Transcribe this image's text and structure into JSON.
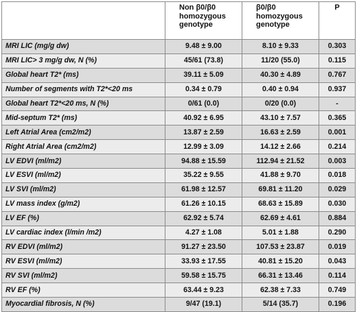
{
  "header": {
    "label_col": "",
    "group1": [
      "Non β0/β0",
      "homozygous",
      "genotype"
    ],
    "group2": [
      "β0/β0",
      "homozygous",
      "genotype"
    ],
    "p_col": "P"
  },
  "rows": [
    {
      "label": "MRI LIC (mg/g dw)",
      "g1": "9.48 ± 9.00",
      "g2": "8.10 ± 9.33",
      "p": "0.303"
    },
    {
      "label": "MRI LIC> 3 mg/g dw, N (%)",
      "g1": "45/61 (73.8)",
      "g2": "11/20 (55.0)",
      "p": "0.115"
    },
    {
      "label": "Global heart T2* (ms)",
      "g1": "39.11 ± 5.09",
      "g2": "40.30 ± 4.89",
      "p": "0.767"
    },
    {
      "label": "Number of segments with T2*<20 ms",
      "g1": "0.34 ± 0.79",
      "g2": "0.40 ± 0.94",
      "p": "0.937"
    },
    {
      "label": "Global heart T2*<20 ms, N (%)",
      "g1": "0/61 (0.0)",
      "g2": "0/20 (0.0)",
      "p": "-"
    },
    {
      "label": "Mid-septum T2* (ms)",
      "g1": "40.92 ± 6.95",
      "g2": "43.10 ± 7.57",
      "p": "0.365"
    },
    {
      "label": "Left Atrial Area (cm2/m2)",
      "g1": "13.87 ± 2.59",
      "g2": "16.63 ± 2.59",
      "p": "0.001"
    },
    {
      "label": "Right Atrial Area (cm2/m2)",
      "g1": "12.99 ± 3.09",
      "g2": "14.12 ± 2.66",
      "p": "0.214"
    },
    {
      "label": "LV EDVI (ml/m2)",
      "g1": "94.88 ± 15.59",
      "g2": "112.94 ± 21.52",
      "p": "0.003"
    },
    {
      "label": "LV ESVI (ml/m2)",
      "g1": "35.22 ± 9.55",
      "g2": "41.88 ± 9.70",
      "p": "0.018"
    },
    {
      "label": "LV SVI (ml/m2)",
      "g1": "61.98 ± 12.57",
      "g2": "69.81 ± 11.20",
      "p": "0.029"
    },
    {
      "label": "LV mass index (g/m2)",
      "g1": "61.26 ± 10.15",
      "g2": "68.63 ± 15.89",
      "p": "0.030"
    },
    {
      "label": "LV EF (%)",
      "g1": "62.92 ± 5.74",
      "g2": "62.69 ± 4.61",
      "p": "0.884"
    },
    {
      "label": "LV cardiac index (l/min /m2)",
      "g1": "4.27 ± 1.08",
      "g2": "5.01 ± 1.88",
      "p": "0.290"
    },
    {
      "label": "RV EDVI (ml/m2)",
      "g1": "91.27 ± 23.50",
      "g2": "107.53 ± 23.87",
      "p": "0.019"
    },
    {
      "label": "RV ESVI (ml/m2)",
      "g1": "33.93 ± 17.55",
      "g2": "40.81 ± 15.20",
      "p": "0.043"
    },
    {
      "label": "RV SVI (ml/m2)",
      "g1": "59.58 ± 15.75",
      "g2": "66.31 ± 13.46",
      "p": "0.114"
    },
    {
      "label": "RV EF (%)",
      "g1": "63.44 ± 9.23",
      "g2": "62.38 ± 7.33",
      "p": "0.749"
    },
    {
      "label": "Myocardial fibrosis, N (%)",
      "g1": "9/47 (19.1)",
      "g2": "5/14 (35.7)",
      "p": "0.196"
    }
  ]
}
